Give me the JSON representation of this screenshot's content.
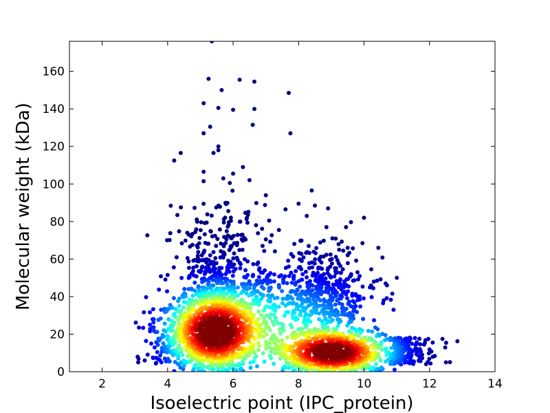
{
  "chart_data": {
    "type": "scatter",
    "style": "density-colored scatter (jet colormap: blue = sparse, red = dense)",
    "xlabel": "Isoelectric point (IPC_protein)",
    "ylabel": "Molecular weight (kDa)",
    "xlim": [
      1,
      14
    ],
    "ylim": [
      0,
      176
    ],
    "x_ticks": [
      2,
      4,
      6,
      8,
      10,
      12,
      14
    ],
    "y_ticks": [
      0,
      20,
      40,
      60,
      80,
      100,
      120,
      140,
      160
    ],
    "grid": false,
    "density_peaks": [
      {
        "x": 5.4,
        "y": 21,
        "color": "red"
      },
      {
        "x": 9.1,
        "y": 10,
        "color": "red"
      }
    ],
    "colormap": [
      "#00007f",
      "#0000ff",
      "#007fff",
      "#00ffff",
      "#7fff7f",
      "#ffff00",
      "#ff7f00",
      "#ff0000",
      "#7f0000"
    ],
    "outlier_points": [
      [
        5.35,
        176
      ],
      [
        5.25,
        156
      ],
      [
        6.2,
        155.5
      ],
      [
        6.65,
        154.5
      ],
      [
        5.65,
        150
      ],
      [
        7.7,
        148.5
      ],
      [
        5.1,
        143
      ],
      [
        5.55,
        140.5
      ],
      [
        6.0,
        139.5
      ],
      [
        6.65,
        140
      ],
      [
        5.3,
        130.5
      ],
      [
        6.6,
        131.5
      ],
      [
        5.1,
        127
      ],
      [
        7.75,
        127
      ],
      [
        5.55,
        120
      ],
      [
        5.55,
        118
      ],
      [
        5.4,
        116.5
      ],
      [
        4.4,
        116.5
      ],
      [
        4.2,
        112.5
      ],
      [
        6.3,
        109
      ],
      [
        5.1,
        106.5
      ],
      [
        6.0,
        105.5
      ],
      [
        5.7,
        103
      ],
      [
        5.1,
        101.5
      ],
      [
        5.9,
        100.5
      ],
      [
        6.5,
        102
      ],
      [
        8.4,
        96.5
      ],
      [
        7.0,
        94
      ],
      [
        8.0,
        89.5
      ],
      [
        8.5,
        88.5
      ],
      [
        8.9,
        87
      ],
      [
        7.6,
        86.5
      ],
      [
        10.0,
        82
      ],
      [
        8.25,
        83
      ],
      [
        7.1,
        80.5
      ],
      [
        8.85,
        77
      ],
      [
        9.45,
        77
      ],
      [
        6.7,
        78
      ],
      [
        7.4,
        75.5
      ],
      [
        4.35,
        74.8
      ],
      [
        4.6,
        74
      ],
      [
        9.95,
        68.5
      ],
      [
        9.5,
        66
      ],
      [
        7.0,
        70.5
      ],
      [
        6.9,
        67
      ],
      [
        4.9,
        59
      ],
      [
        5.3,
        62
      ],
      [
        6.2,
        58
      ],
      [
        7.7,
        56
      ],
      [
        8.6,
        55
      ],
      [
        9.8,
        53
      ],
      [
        10.3,
        48
      ],
      [
        11.0,
        50
      ],
      [
        10.7,
        46
      ],
      [
        4.0,
        51.5
      ],
      [
        10.6,
        38
      ],
      [
        10.9,
        33
      ],
      [
        11.6,
        15
      ],
      [
        12.5,
        5
      ],
      [
        12.1,
        8
      ],
      [
        3.1,
        5
      ],
      [
        3.3,
        6
      ],
      [
        3.55,
        7.5
      ],
      [
        3.8,
        33
      ],
      [
        3.5,
        15
      ]
    ]
  }
}
